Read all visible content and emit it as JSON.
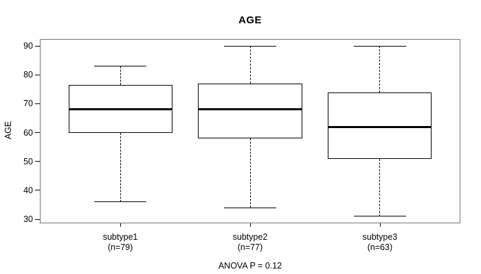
{
  "title": "AGE",
  "footer": "ANOVA P = 0.12",
  "chart_data": {
    "type": "boxplot",
    "title": "AGE",
    "ylabel": "AGE",
    "xlabel": "",
    "yticks": [
      30,
      40,
      50,
      60,
      70,
      80,
      90
    ],
    "ylim": [
      28.6,
      92.4
    ],
    "grid": false,
    "annotation": "ANOVA P = 0.12",
    "groups": [
      {
        "label": "subtype1",
        "sublabel": "(n=79)",
        "n": 79,
        "min": 36,
        "q1": 60,
        "median": 68,
        "q3": 76.5,
        "max": 83
      },
      {
        "label": "subtype2",
        "sublabel": "(n=77)",
        "n": 77,
        "min": 34,
        "q1": 58,
        "median": 68,
        "q3": 77,
        "max": 90
      },
      {
        "label": "subtype3",
        "sublabel": "(n=63)",
        "n": 63,
        "min": 31,
        "q1": 51,
        "median": 62,
        "q3": 74,
        "max": 90
      }
    ],
    "colors": {
      "frame": "#757575",
      "box_border": "#000000",
      "median": "#000000",
      "whisker": "#000000",
      "text": "#000000",
      "background": "#ffffff"
    }
  }
}
